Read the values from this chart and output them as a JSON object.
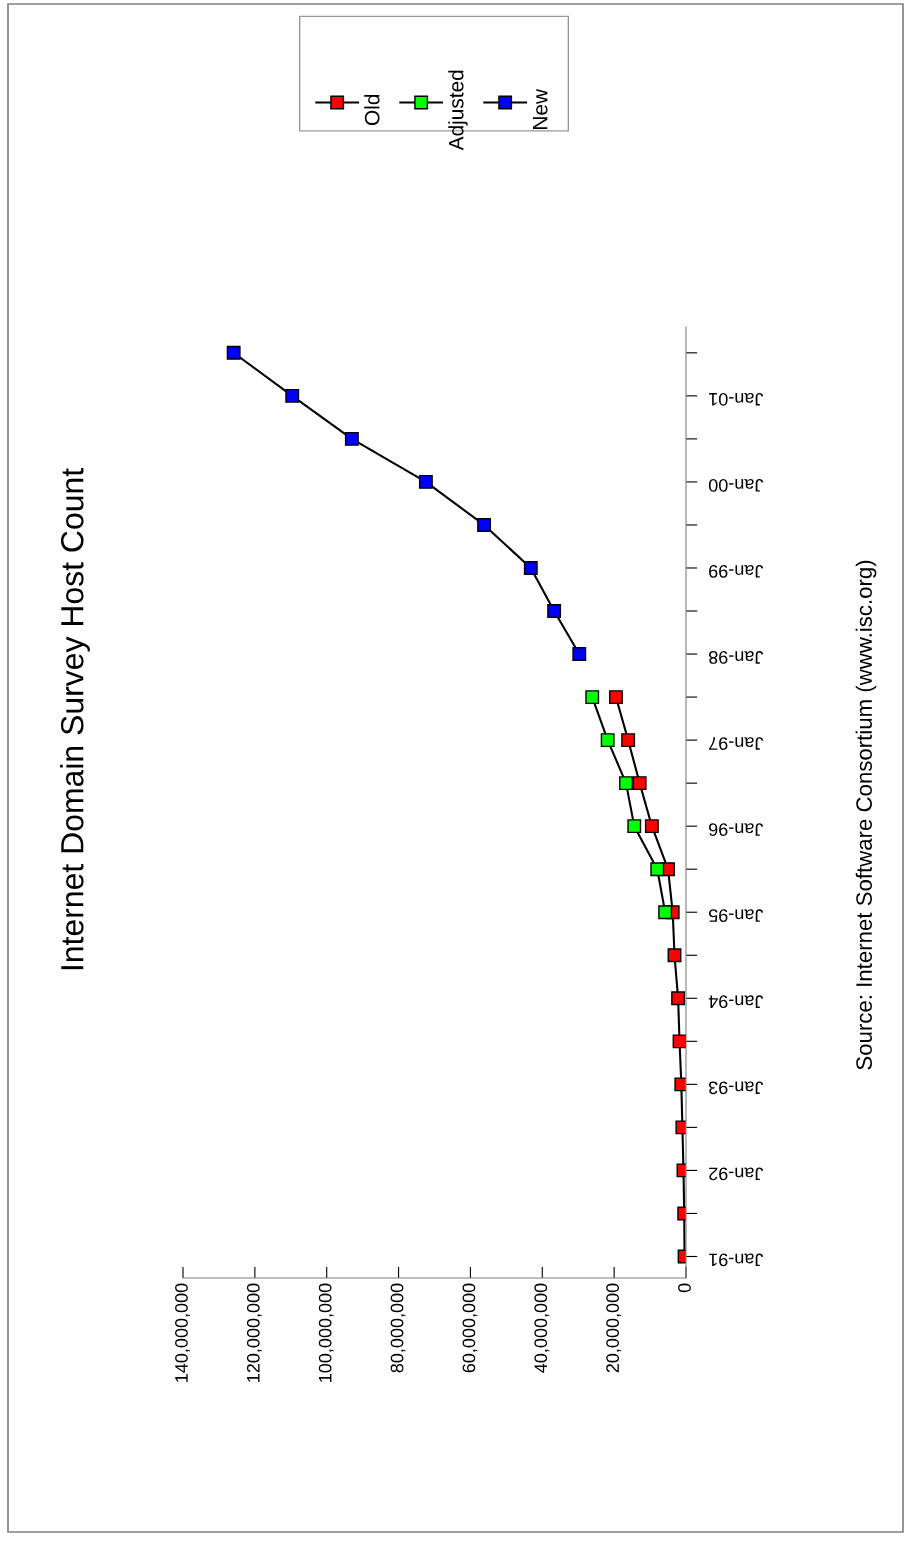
{
  "chart_data": {
    "type": "line",
    "orientation": "horizontal",
    "title": "Internet Domain Survey Host Count",
    "categories": [
      null,
      "Jan-01",
      null,
      "Jan-00",
      null,
      "Jan-99",
      null,
      "Jan-98",
      null,
      "Jan-97",
      null,
      "Jan-96",
      null,
      "Jan-95",
      null,
      "Jan-94",
      null,
      "Jan-93",
      null,
      "Jan-92",
      null,
      "Jan-91"
    ],
    "series": [
      {
        "name": "Old",
        "color": "#ff0000",
        "values": [
          null,
          null,
          null,
          null,
          null,
          null,
          null,
          null,
          19500000,
          16100000,
          12900000,
          9500000,
          5000000,
          3700000,
          3200000,
          2200000,
          1800000,
          1300000,
          1000000,
          700000,
          500000,
          400000
        ]
      },
      {
        "name": "Adjusted",
        "color": "#00ff00",
        "values": [
          null,
          null,
          null,
          null,
          null,
          null,
          null,
          null,
          26100000,
          21800000,
          16700000,
          14400000,
          8000000,
          5800000,
          null,
          null,
          null,
          null,
          null,
          null,
          null,
          null
        ]
      },
      {
        "name": "New",
        "color": "#0000ff",
        "values": [
          125900000,
          109600000,
          93000000,
          72400000,
          56200000,
          43200000,
          36700000,
          29700000,
          null,
          null,
          null,
          null,
          null,
          null,
          null,
          null,
          null,
          null,
          null,
          null,
          null,
          null
        ]
      }
    ],
    "xlim": [
      140000000,
      0
    ],
    "xticks": [
      {
        "value": 140000000,
        "label": "140,000,000"
      },
      {
        "value": 120000000,
        "label": "120,000,000"
      },
      {
        "value": 100000000,
        "label": "100,000,000"
      },
      {
        "value": 80000000,
        "label": "80,000,000"
      },
      {
        "value": 60000000,
        "label": "60,000,000"
      },
      {
        "value": 40000000,
        "label": "40,000,000"
      },
      {
        "value": 20000000,
        "label": "20,000,000"
      },
      0
    ],
    "annotations": [
      "Source: Internet Software Consortium (www.isc.org)"
    ],
    "marker": "square",
    "line_style": "solid",
    "grid": false,
    "legend": "top"
  }
}
